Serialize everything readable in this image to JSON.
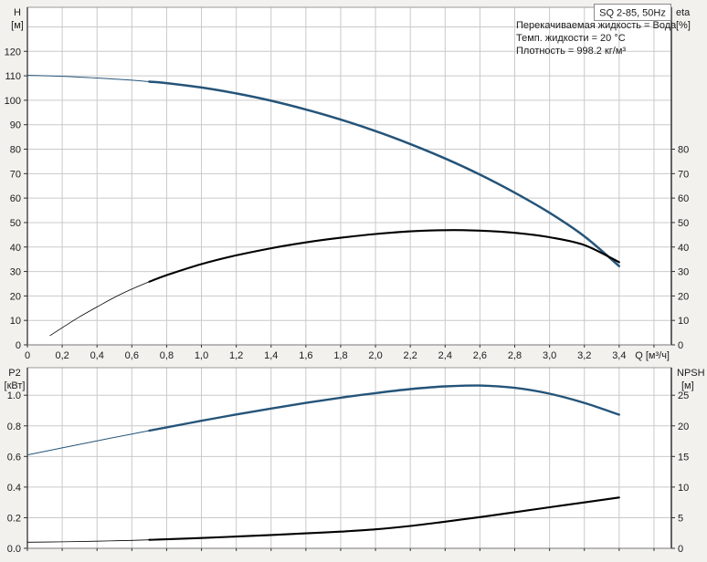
{
  "title_box": {
    "label": "SQ 2-85, 50Hz"
  },
  "info_lines": [
    "Перекачиваемая жидкость = Вода",
    "Темп. жидкости = 20 °C",
    "Плотность = 998.2 кг/м³"
  ],
  "colors": {
    "curve_blue": "#255479",
    "curve_black": "#000000",
    "grid": "#c9c9c9",
    "border": "#999999",
    "axis_dark": "#222222",
    "bottom_axis": "#777777",
    "tick": "#333333",
    "plot_bg": "#ffffff",
    "page_bg": "#f2f1ed"
  },
  "chart_data": [
    {
      "type": "line",
      "title": "Q-H and efficiency curves",
      "x_axis": {
        "label": "Q [м³/ч]",
        "min": 0,
        "max": 3.7,
        "grid_step": 0.2,
        "show_tick_labels": true,
        "tick_values": [
          0,
          0.2,
          0.4,
          0.6,
          0.8,
          1.0,
          1.2,
          1.4,
          1.6,
          1.8,
          2.0,
          2.2,
          2.4,
          2.6,
          2.8,
          3.0,
          3.2,
          3.4
        ],
        "tick_labels": [
          "0",
          "0,2",
          "0,4",
          "0,6",
          "0,8",
          "1,0",
          "1,2",
          "1,4",
          "1,6",
          "1,8",
          "2,0",
          "2,2",
          "2,4",
          "2,6",
          "2,8",
          "3,0",
          "3,2",
          "3,4"
        ]
      },
      "y_left": {
        "unit": [
          "H",
          "[м]"
        ],
        "min": 0,
        "max": 138,
        "grid_step": 10,
        "tick_values": [
          0,
          10,
          20,
          30,
          40,
          50,
          60,
          70,
          80,
          90,
          100,
          110,
          120
        ],
        "tick_labels": [
          "0",
          "10",
          "20",
          "30",
          "40",
          "50",
          "60",
          "70",
          "80",
          "90",
          "100",
          "110",
          "120"
        ]
      },
      "y_right": {
        "unit": [
          "eta",
          "[%]"
        ],
        "min": 0,
        "max": 138,
        "tick_values": [
          0,
          10,
          20,
          30,
          40,
          50,
          60,
          70,
          80
        ],
        "tick_labels": [
          "0",
          "10",
          "20",
          "30",
          "40",
          "50",
          "60",
          "70",
          "80"
        ]
      },
      "series": [
        {
          "key": "head-curve",
          "name": "H",
          "axis": "left",
          "color": "#255479",
          "thin_until": 0.7,
          "width": 2.5,
          "thin_width": 1,
          "points": [
            [
              0,
              110.2
            ],
            [
              0.2,
              109.8
            ],
            [
              0.4,
              109.1
            ],
            [
              0.6,
              108.2
            ],
            [
              0.7,
              107.6
            ],
            [
              0.8,
              107.0
            ],
            [
              1.0,
              105.2
            ],
            [
              1.2,
              102.8
            ],
            [
              1.4,
              99.8
            ],
            [
              1.6,
              96.2
            ],
            [
              1.8,
              92.1
            ],
            [
              2.0,
              87.4
            ],
            [
              2.2,
              82.1
            ],
            [
              2.4,
              76.2
            ],
            [
              2.6,
              69.6
            ],
            [
              2.8,
              62.2
            ],
            [
              3.0,
              54.0
            ],
            [
              3.2,
              44.4
            ],
            [
              3.4,
              32.2
            ]
          ]
        },
        {
          "key": "efficiency-curve",
          "name": "eta",
          "axis": "right",
          "color": "#000000",
          "thin_until": 0.7,
          "width": 2.1,
          "thin_width": 0.8,
          "points": [
            [
              0.13,
              3.8
            ],
            [
              0.2,
              7.0
            ],
            [
              0.3,
              11.5
            ],
            [
              0.4,
              15.5
            ],
            [
              0.5,
              19.4
            ],
            [
              0.6,
              22.8
            ],
            [
              0.7,
              25.8
            ],
            [
              0.8,
              28.5
            ],
            [
              1.0,
              33.0
            ],
            [
              1.2,
              36.6
            ],
            [
              1.4,
              39.5
            ],
            [
              1.6,
              41.9
            ],
            [
              1.8,
              43.8
            ],
            [
              2.0,
              45.3
            ],
            [
              2.2,
              46.4
            ],
            [
              2.4,
              46.9
            ],
            [
              2.6,
              46.7
            ],
            [
              2.8,
              45.8
            ],
            [
              3.0,
              44.0
            ],
            [
              3.2,
              40.8
            ],
            [
              3.4,
              33.8
            ]
          ]
        }
      ]
    },
    {
      "type": "line",
      "title": "Power and NPSH curves",
      "x_axis": {
        "label": "",
        "min": 0,
        "max": 3.7,
        "grid_step": 0.2,
        "show_tick_labels": false,
        "tick_values": [
          0,
          0.2,
          0.4,
          0.6,
          0.8,
          1.0,
          1.2,
          1.4,
          1.6,
          1.8,
          2.0,
          2.2,
          2.4,
          2.6,
          2.8,
          3.0,
          3.2,
          3.4
        ],
        "tick_labels": []
      },
      "y_left": {
        "unit": [
          "P2",
          "[кВт]"
        ],
        "min": 0,
        "max": 1.18,
        "grid_step": 0.2,
        "tick_values": [
          0,
          0.2,
          0.4,
          0.6,
          0.8,
          1.0
        ],
        "tick_labels": [
          "0.0",
          "0.2",
          "0.4",
          "0.6",
          "0.8",
          "1.0"
        ]
      },
      "y_right": {
        "unit": [
          "NPSH",
          "[м]"
        ],
        "min": 0,
        "max": 29.5,
        "tick_values": [
          0,
          5,
          10,
          15,
          20,
          25
        ],
        "tick_labels": [
          "0",
          "5",
          "10",
          "15",
          "20",
          "25"
        ]
      },
      "series": [
        {
          "key": "power-curve",
          "name": "P2",
          "axis": "left",
          "color": "#255479",
          "thin_until": 0.7,
          "width": 2.4,
          "thin_width": 1,
          "points": [
            [
              0,
              0.61
            ],
            [
              0.2,
              0.656
            ],
            [
              0.4,
              0.702
            ],
            [
              0.6,
              0.747
            ],
            [
              0.7,
              0.769
            ],
            [
              0.8,
              0.79
            ],
            [
              1.0,
              0.833
            ],
            [
              1.2,
              0.874
            ],
            [
              1.4,
              0.913
            ],
            [
              1.6,
              0.95
            ],
            [
              1.8,
              0.984
            ],
            [
              2.0,
              1.014
            ],
            [
              2.2,
              1.04
            ],
            [
              2.4,
              1.058
            ],
            [
              2.6,
              1.063
            ],
            [
              2.8,
              1.048
            ],
            [
              3.0,
              1.01
            ],
            [
              3.2,
              0.95
            ],
            [
              3.4,
              0.873
            ]
          ]
        },
        {
          "key": "npsh-curve",
          "name": "NPSH",
          "axis": "right",
          "color": "#000000",
          "thin_until": 0.7,
          "width": 2.1,
          "thin_width": 0.8,
          "points": [
            [
              0,
              1.0
            ],
            [
              0.2,
              1.06
            ],
            [
              0.4,
              1.16
            ],
            [
              0.6,
              1.3
            ],
            [
              0.7,
              1.38
            ],
            [
              0.8,
              1.47
            ],
            [
              1.0,
              1.68
            ],
            [
              1.2,
              1.92
            ],
            [
              1.4,
              2.18
            ],
            [
              1.6,
              2.45
            ],
            [
              1.8,
              2.73
            ],
            [
              2.0,
              3.1
            ],
            [
              2.2,
              3.65
            ],
            [
              2.4,
              4.35
            ],
            [
              2.6,
              5.1
            ],
            [
              2.8,
              5.9
            ],
            [
              3.0,
              6.7
            ],
            [
              3.2,
              7.5
            ],
            [
              3.4,
              8.3
            ]
          ]
        }
      ]
    }
  ]
}
